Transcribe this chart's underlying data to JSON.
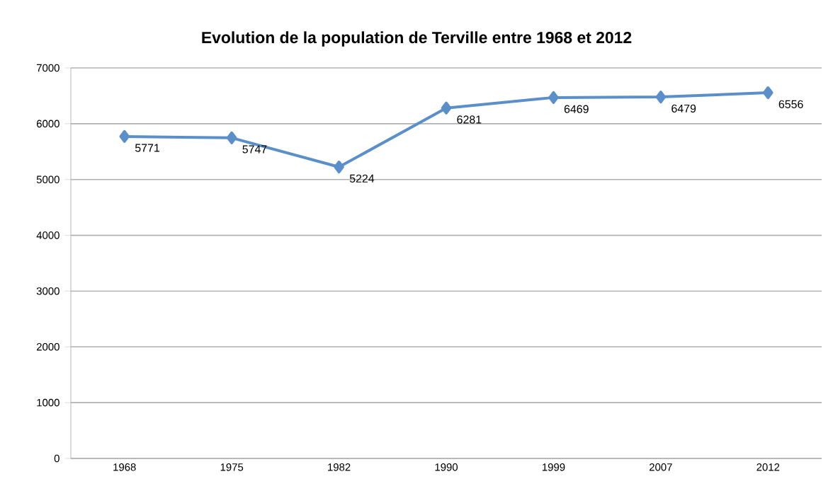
{
  "chart_data": {
    "type": "line",
    "title": "Evolution de la population de Terville entre 1968 et 2012",
    "categories": [
      "1968",
      "1975",
      "1982",
      "1990",
      "1999",
      "2007",
      "2012"
    ],
    "values": [
      5771,
      5747,
      5224,
      6281,
      6469,
      6479,
      6556
    ],
    "color": "#5b8fc9",
    "marker": "diamond",
    "data_labels": true,
    "grid": "y",
    "ylim": [
      0,
      7000
    ],
    "yticks": [
      0,
      1000,
      2000,
      3000,
      4000,
      5000,
      6000,
      7000
    ]
  }
}
